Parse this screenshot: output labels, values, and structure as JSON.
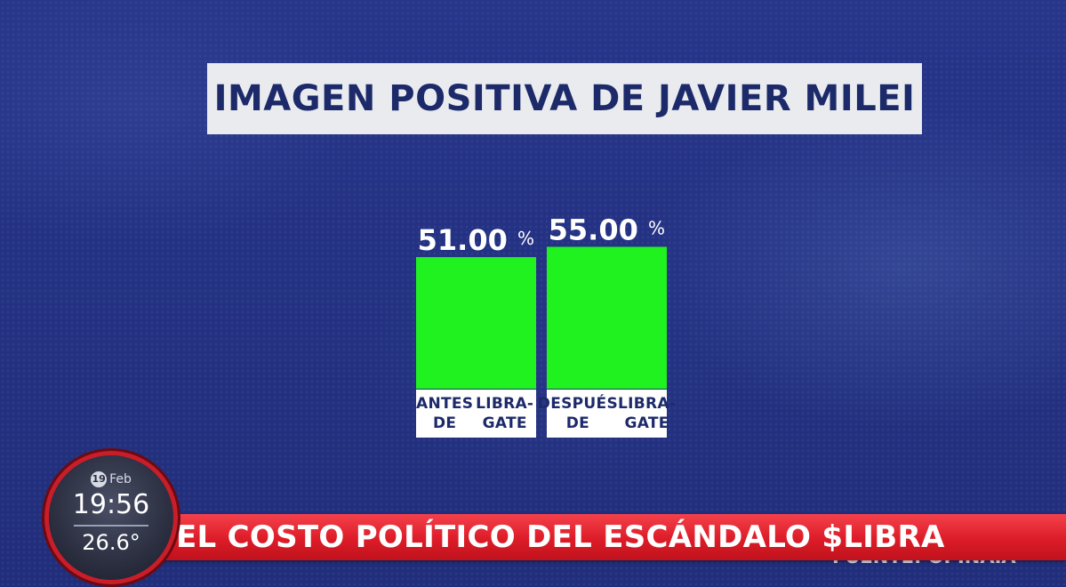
{
  "chart_data": {
    "type": "bar",
    "title": "IMAGEN POSITIVA DE JAVIER MILEI",
    "categories": [
      "ANTES DE LIBRA-GATE",
      "DESPUÉS DE LIBRA-GATE"
    ],
    "category_lines": [
      [
        "ANTES DE",
        "LIBRA-GATE"
      ],
      [
        "DESPUÉS DE",
        "LIBRA-GATE"
      ]
    ],
    "values": [
      51.0,
      55.0
    ],
    "value_labels": [
      "51.00",
      "55.00"
    ],
    "unit": "%",
    "bar_color": "#1ff21f",
    "grid": false,
    "legend": "none"
  },
  "ticker": {
    "headline": "EL COSTO POLÍTICO DEL ESCÁNDALO $LIBRA",
    "source": "FUENTE: OPINAIA",
    "accent_color": "#dc1c28"
  },
  "clock": {
    "day": "19",
    "month": "Feb",
    "time": "19:56",
    "temperature": "26.6°"
  }
}
